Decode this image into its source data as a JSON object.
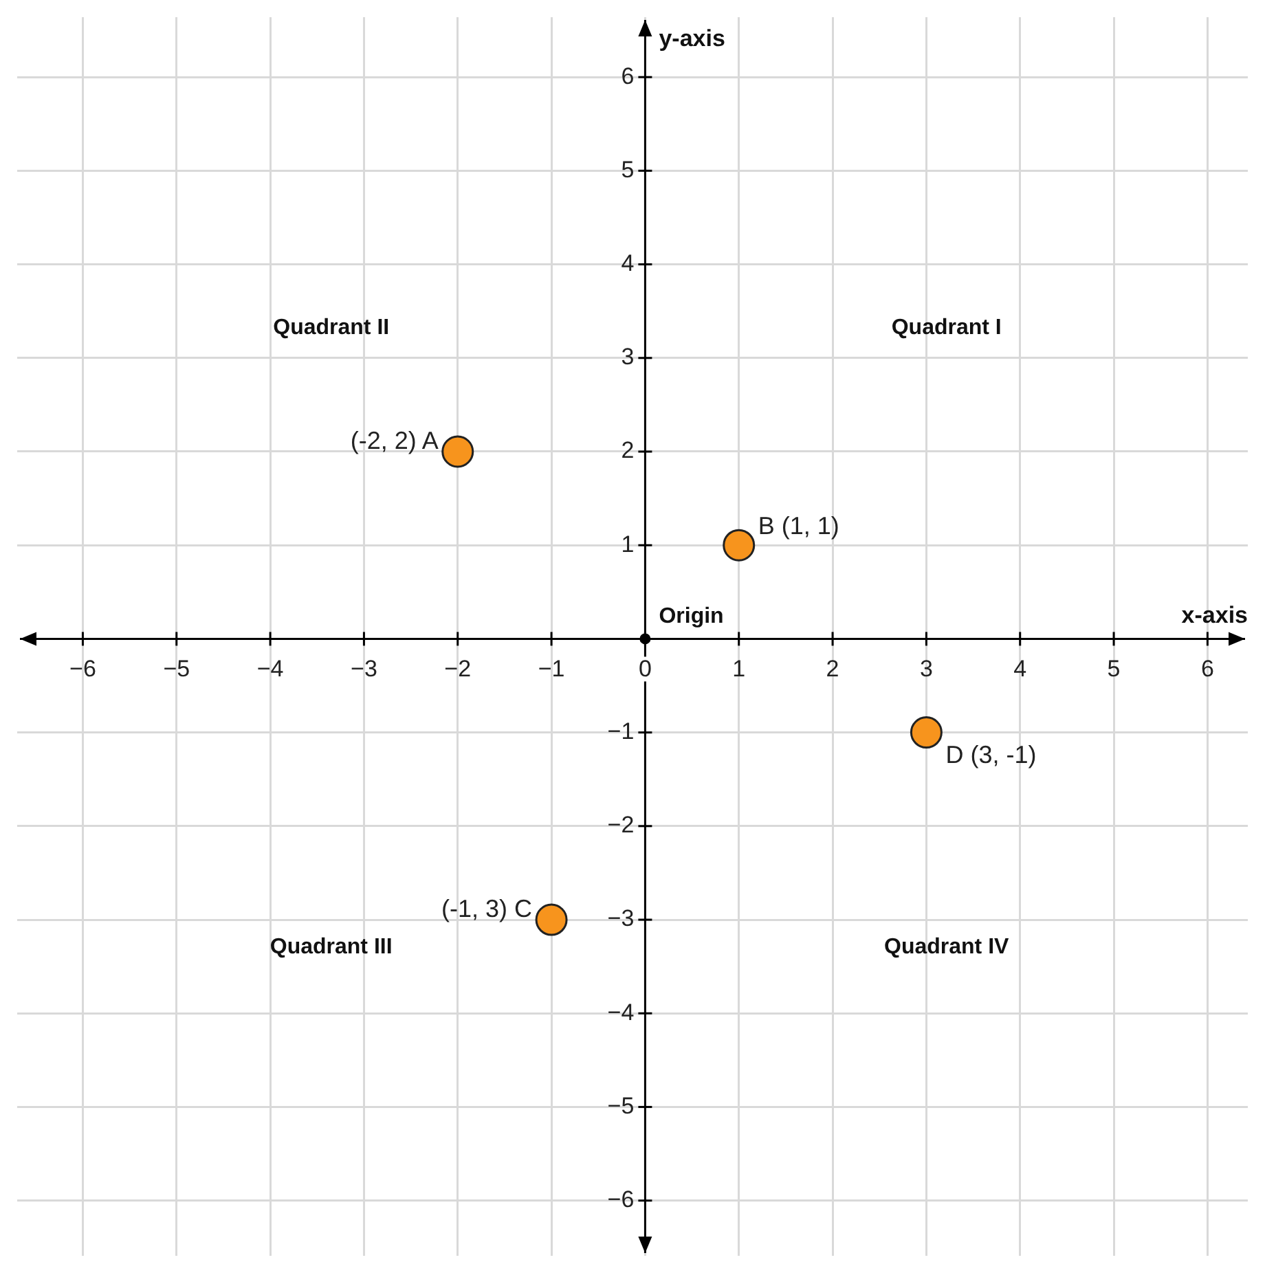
{
  "chart_data": {
    "type": "scatter",
    "xlabel": "x-axis",
    "ylabel": "y-axis",
    "series": [
      {
        "color": "#f7941d",
        "x": [
          -2,
          1,
          -1,
          3
        ],
        "values": [
          2,
          1,
          -3,
          -1
        ],
        "value_labels": [
          "(-2, 2) A",
          "B (1, 1)",
          "(-1, 3) C",
          "D (3, -1)"
        ]
      },
      {
        "color": "#000000",
        "x": [
          0
        ],
        "values": [
          0
        ]
      }
    ],
    "marker": "circle",
    "xlim": [
      -6.7,
      6.43
    ],
    "ylim": [
      -6.59,
      6.64
    ],
    "xticks": [
      {
        "value": -6,
        "label": "−6"
      },
      {
        "value": -5,
        "label": "−5"
      },
      {
        "value": -4,
        "label": "−4"
      },
      {
        "value": -3,
        "label": "−3"
      },
      {
        "value": -2,
        "label": "−2"
      },
      {
        "value": -1,
        "label": "−1"
      },
      0,
      1,
      2,
      3,
      4,
      5,
      6
    ],
    "yticks": [
      {
        "value": -6,
        "label": "−6"
      },
      {
        "value": -5,
        "label": "−5"
      },
      {
        "value": -4,
        "label": "−4"
      },
      {
        "value": -3,
        "label": "−3"
      },
      {
        "value": -2,
        "label": "−2"
      },
      {
        "value": -1,
        "label": "−1"
      },
      1,
      2,
      3,
      4,
      5,
      6
    ],
    "grid": true,
    "legend": false,
    "annotations": [
      "Quadrant I",
      "Quadrant II",
      "Quadrant III",
      "Quadrant IV",
      {
        "text": "Origin",
        "x": 0,
        "y": 0
      }
    ]
  }
}
